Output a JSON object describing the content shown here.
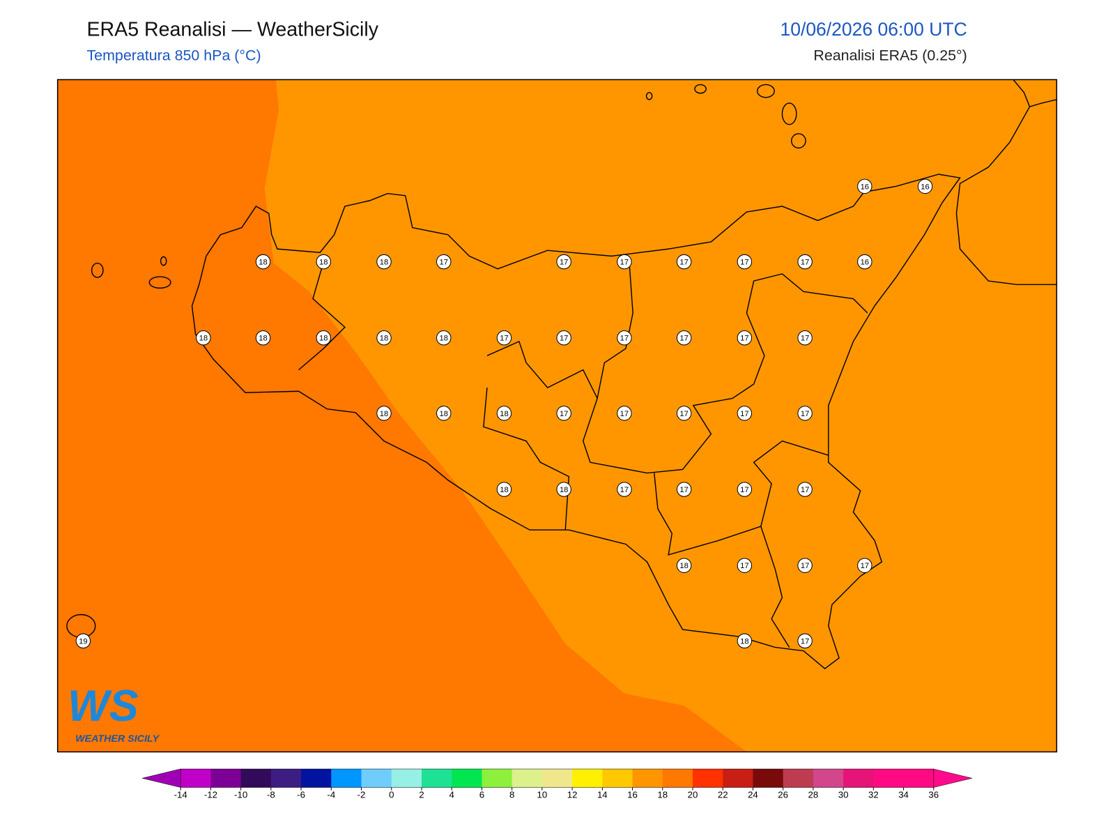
{
  "header": {
    "title": "ERA5 Reanalisi — WeatherSicily",
    "subtitle": "Temperatura 850 hPa (°C)",
    "datetime": "10/06/2026 06:00 UTC",
    "source": "Reanalisi ERA5 (0.25°)"
  },
  "logo": {
    "mark": "WS",
    "name": "WEATHER SICILY"
  },
  "stations": [
    16,
    16,
    18,
    18,
    18,
    17,
    17,
    17,
    17,
    17,
    17,
    16,
    18,
    18,
    18,
    18,
    18,
    17,
    17,
    17,
    17,
    17,
    17,
    18,
    18,
    18,
    17,
    17,
    17,
    17,
    17,
    18,
    18,
    17,
    17,
    17,
    17,
    18,
    17,
    17,
    17,
    19,
    18,
    17
  ],
  "colorbar": {
    "ticks": [
      -14,
      -12,
      -10,
      -8,
      -6,
      -4,
      -2,
      0,
      2,
      4,
      6,
      8,
      10,
      12,
      14,
      16,
      18,
      20,
      22,
      24,
      26,
      28,
      30,
      32,
      34,
      36
    ],
    "colors": [
      "#c000c8",
      "#7d0096",
      "#320a5a",
      "#3c1e82",
      "#0014a0",
      "#0096ff",
      "#6ecdfa",
      "#96f0e6",
      "#1ee196",
      "#00e650",
      "#8cf03c",
      "#dcf08c",
      "#f0e68c",
      "#fff000",
      "#ffc800",
      "#ff9600",
      "#ff7800",
      "#ff3200",
      "#c81e14",
      "#780a0a",
      "#be3c50",
      "#d2468c",
      "#e61478",
      "#ff0a82",
      "#ff0a82"
    ],
    "under_color": "#a000b4",
    "over_color": "#ff0a8c"
  }
}
